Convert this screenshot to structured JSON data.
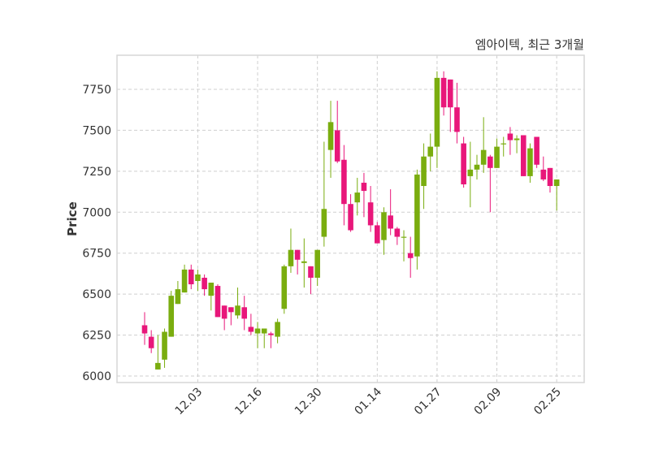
{
  "chart_data": {
    "type": "candlestick",
    "title": "엠아이텍, 최근 3개월",
    "xlabel": "",
    "ylabel": "Price",
    "ylim": [
      5960,
      7960
    ],
    "yticks": [
      6000,
      6250,
      6500,
      6750,
      7000,
      7250,
      7500,
      7750
    ],
    "xtick_labels": [
      {
        "index": 8,
        "label": "12.03"
      },
      {
        "index": 17,
        "label": "12.16"
      },
      {
        "index": 26,
        "label": "12.30"
      },
      {
        "index": 35,
        "label": "01.14"
      },
      {
        "index": 44,
        "label": "01.27"
      },
      {
        "index": 53,
        "label": "02.09"
      },
      {
        "index": 62,
        "label": "02.25"
      }
    ],
    "grid": true,
    "colors": {
      "up": "#7aad0f",
      "down": "#e8177a"
    },
    "ohlc": [
      [
        6310,
        6390,
        6190,
        6260
      ],
      [
        6240,
        6280,
        6140,
        6170
      ],
      [
        6040,
        6250,
        6040,
        6080
      ],
      [
        6100,
        6290,
        6050,
        6270
      ],
      [
        6240,
        6520,
        6240,
        6490
      ],
      [
        6440,
        6580,
        6440,
        6530
      ],
      [
        6510,
        6680,
        6510,
        6650
      ],
      [
        6650,
        6680,
        6530,
        6560
      ],
      [
        6580,
        6650,
        6520,
        6620
      ],
      [
        6600,
        6620,
        6490,
        6530
      ],
      [
        6490,
        6570,
        6400,
        6570
      ],
      [
        6550,
        6560,
        6360,
        6360
      ],
      [
        6430,
        6430,
        6280,
        6350
      ],
      [
        6420,
        6420,
        6310,
        6390
      ],
      [
        6370,
        6540,
        6350,
        6430
      ],
      [
        6420,
        6490,
        6280,
        6350
      ],
      [
        6300,
        6380,
        6250,
        6270
      ],
      [
        6260,
        6330,
        6170,
        6290
      ],
      [
        6260,
        6290,
        6170,
        6290
      ],
      [
        6260,
        6270,
        6170,
        6250
      ],
      [
        6240,
        6350,
        6200,
        6330
      ],
      [
        6410,
        6680,
        6380,
        6670
      ],
      [
        6670,
        6900,
        6630,
        6770
      ],
      [
        6770,
        6770,
        6620,
        6710
      ],
      [
        6690,
        6840,
        6540,
        6700
      ],
      [
        6670,
        6670,
        6500,
        6600
      ],
      [
        6600,
        6770,
        6550,
        6770
      ],
      [
        6850,
        7430,
        6790,
        7020
      ],
      [
        7380,
        7680,
        7210,
        7550
      ],
      [
        7500,
        7680,
        7300,
        7310
      ],
      [
        7320,
        7410,
        6920,
        7050
      ],
      [
        7050,
        7110,
        6880,
        6890
      ],
      [
        7060,
        7210,
        6980,
        7120
      ],
      [
        7180,
        7240,
        6970,
        7130
      ],
      [
        7060,
        7160,
        6880,
        6920
      ],
      [
        6920,
        6940,
        6810,
        6810
      ],
      [
        6830,
        7030,
        6740,
        7000
      ],
      [
        6980,
        7140,
        6860,
        6900
      ],
      [
        6900,
        6910,
        6800,
        6850
      ],
      [
        6850,
        6890,
        6700,
        6850
      ],
      [
        6750,
        6850,
        6600,
        6720
      ],
      [
        6730,
        7260,
        6650,
        7230
      ],
      [
        7160,
        7420,
        7020,
        7340
      ],
      [
        7340,
        7480,
        7250,
        7400
      ],
      [
        7400,
        7860,
        7270,
        7820
      ],
      [
        7820,
        7860,
        7590,
        7640
      ],
      [
        7810,
        7810,
        7490,
        7640
      ],
      [
        7640,
        7790,
        7420,
        7490
      ],
      [
        7420,
        7460,
        7150,
        7170
      ],
      [
        7220,
        7430,
        7030,
        7260
      ],
      [
        7260,
        7350,
        7200,
        7290
      ],
      [
        7290,
        7580,
        7240,
        7380
      ],
      [
        7340,
        7350,
        7000,
        7270
      ],
      [
        7270,
        7450,
        7270,
        7400
      ],
      [
        7420,
        7460,
        7340,
        7420
      ],
      [
        7480,
        7520,
        7350,
        7440
      ],
      [
        7440,
        7470,
        7360,
        7450
      ],
      [
        7470,
        7470,
        7220,
        7220
      ],
      [
        7220,
        7420,
        7180,
        7390
      ],
      [
        7460,
        7460,
        7270,
        7290
      ],
      [
        7260,
        7340,
        7190,
        7200
      ],
      [
        7270,
        7270,
        7120,
        7160
      ],
      [
        7160,
        7200,
        7010,
        7200
      ]
    ]
  }
}
